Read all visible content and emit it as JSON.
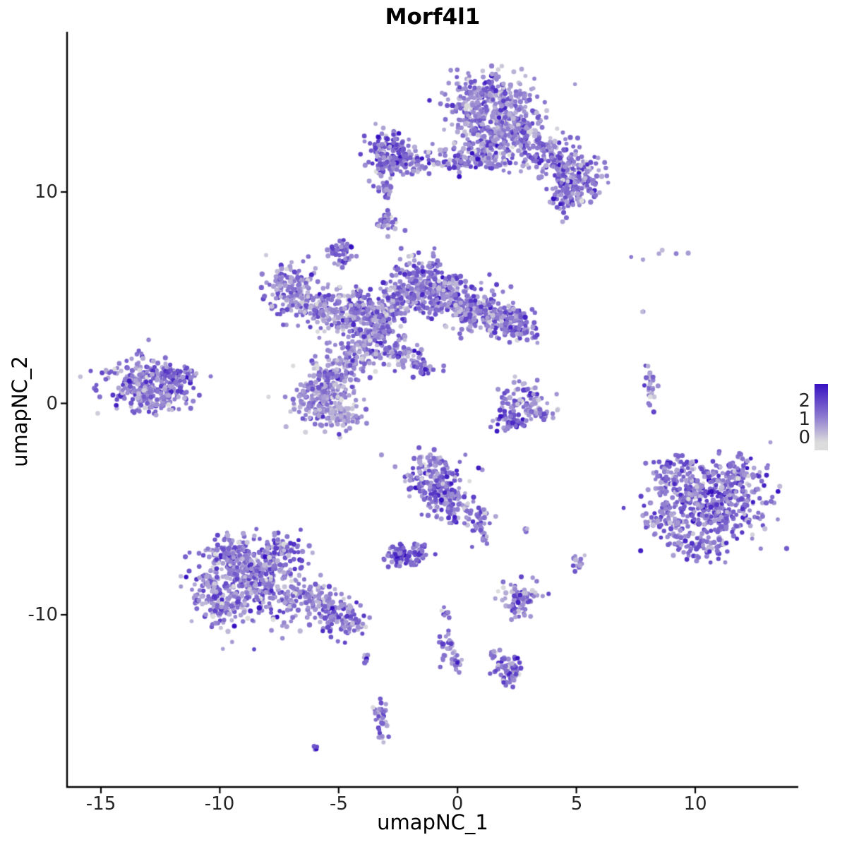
{
  "chart_data": {
    "type": "scatter",
    "title": "Morf4l1",
    "xlabel": "umapNC_1",
    "ylabel": "umapNC_2",
    "xlim": [
      -16.4,
      14.3
    ],
    "ylim": [
      -18.1,
      17.6
    ],
    "xticks": [
      -15,
      -10,
      -5,
      0,
      5,
      10
    ],
    "xtick_labels": [
      "-15",
      "-10",
      "-5",
      "0",
      "5",
      "10"
    ],
    "yticks": [
      -10,
      0,
      10
    ],
    "ytick_labels": [
      "-10",
      "0",
      "10"
    ],
    "grid": false,
    "legend": {
      "tick_labels": [
        "2",
        "1",
        "0"
      ],
      "values": [
        2,
        1,
        0
      ],
      "low_color": "#DCDCDC",
      "high_color": "#3711C1",
      "value_range": [
        0,
        2.6
      ],
      "position": "right"
    },
    "point_radius": 3.2,
    "seed": 42,
    "expr_sd": 0.55,
    "cluster_fields": [
      "x",
      "y",
      "sx",
      "sy",
      "n",
      "expr_mean"
    ],
    "clusters": [
      [
        1.3,
        14.3,
        0.85,
        0.75,
        270,
        1.15
      ],
      [
        2.3,
        13.2,
        0.7,
        0.65,
        170,
        1.2
      ],
      [
        0.9,
        12.9,
        0.5,
        0.6,
        90,
        1.1
      ],
      [
        3.3,
        12.2,
        0.55,
        0.5,
        90,
        1.2
      ],
      [
        4.2,
        11.3,
        0.5,
        0.5,
        90,
        1.3
      ],
      [
        5.0,
        10.7,
        0.5,
        0.55,
        130,
        1.35
      ],
      [
        4.6,
        9.7,
        0.35,
        0.4,
        50,
        1.3
      ],
      [
        1.5,
        11.9,
        0.45,
        0.4,
        60,
        1.15
      ],
      [
        0.9,
        11.5,
        0.9,
        0.22,
        70,
        1.2
      ],
      [
        -0.5,
        11.6,
        0.5,
        0.3,
        45,
        1.1
      ],
      [
        -2.95,
        11.8,
        0.45,
        0.5,
        140,
        1.45
      ],
      [
        -2.2,
        11.4,
        0.5,
        0.3,
        55,
        1.2
      ],
      [
        -3.0,
        10.1,
        0.15,
        0.35,
        22,
        1.3
      ],
      [
        -2.9,
        8.6,
        0.22,
        0.3,
        30,
        1.4
      ],
      [
        -4.9,
        7.1,
        0.28,
        0.3,
        48,
        1.5
      ],
      [
        -7.1,
        5.6,
        0.55,
        0.6,
        120,
        1.15
      ],
      [
        -6.3,
        4.7,
        0.5,
        0.5,
        80,
        1.1
      ],
      [
        -5.3,
        4.2,
        0.5,
        0.45,
        75,
        1.1
      ],
      [
        -4.4,
        4.5,
        0.5,
        0.5,
        95,
        1.2
      ],
      [
        -3.6,
        3.9,
        0.5,
        0.55,
        130,
        1.35
      ],
      [
        -2.6,
        4.8,
        0.5,
        0.5,
        95,
        1.2
      ],
      [
        -1.4,
        5.7,
        0.7,
        0.6,
        190,
        1.3
      ],
      [
        -0.3,
        4.9,
        0.6,
        0.55,
        150,
        1.3
      ],
      [
        0.8,
        4.4,
        0.6,
        0.5,
        120,
        1.2
      ],
      [
        1.9,
        4.0,
        0.55,
        0.4,
        110,
        1.3
      ],
      [
        2.6,
        3.5,
        0.4,
        0.3,
        60,
        1.3
      ],
      [
        -3.3,
        3.0,
        0.5,
        0.5,
        90,
        1.2
      ],
      [
        -4.5,
        2.3,
        0.6,
        0.5,
        100,
        1.1
      ],
      [
        -5.4,
        1.2,
        0.6,
        0.55,
        130,
        1.1
      ],
      [
        -5.9,
        0.2,
        0.6,
        0.55,
        140,
        1.05
      ],
      [
        -5.0,
        -0.6,
        0.5,
        0.4,
        85,
        1.0
      ],
      [
        -2.2,
        2.2,
        0.35,
        0.35,
        40,
        1.2
      ],
      [
        -1.5,
        1.6,
        0.3,
        0.25,
        30,
        1.25
      ],
      [
        -13.2,
        1.0,
        0.9,
        0.6,
        240,
        1.2
      ],
      [
        -11.9,
        1.3,
        0.4,
        0.3,
        60,
        1.35
      ],
      [
        -12.6,
        0.2,
        0.6,
        0.35,
        60,
        1.1
      ],
      [
        2.8,
        0.2,
        0.5,
        0.45,
        65,
        1.1
      ],
      [
        2.2,
        -0.8,
        0.3,
        0.25,
        45,
        1.5
      ],
      [
        3.4,
        -0.4,
        0.3,
        0.3,
        28,
        1.0
      ],
      [
        8.15,
        0.9,
        0.12,
        0.45,
        28,
        1.0
      ],
      [
        8.3,
        7.0,
        0.9,
        0.12,
        6,
        1.0
      ],
      [
        7.8,
        4.3,
        0.05,
        0.05,
        2,
        0.6
      ],
      [
        10.6,
        -4.8,
        1.25,
        1.05,
        430,
        1.4
      ],
      [
        9.3,
        -3.5,
        0.6,
        0.55,
        95,
        1.2
      ],
      [
        11.9,
        -3.3,
        0.5,
        0.45,
        70,
        1.3
      ],
      [
        8.6,
        -5.5,
        0.4,
        0.5,
        55,
        1.1
      ],
      [
        10.0,
        -6.8,
        0.6,
        0.3,
        50,
        1.2
      ],
      [
        -0.9,
        -3.7,
        0.6,
        0.6,
        180,
        1.3
      ],
      [
        -0.3,
        -4.9,
        0.4,
        0.4,
        60,
        1.25
      ],
      [
        0.9,
        -5.6,
        0.25,
        0.4,
        40,
        1.3
      ],
      [
        1.2,
        -6.4,
        0.1,
        0.12,
        6,
        1.2
      ],
      [
        2.8,
        -5.9,
        0.08,
        0.08,
        4,
        1.1
      ],
      [
        -2.3,
        -7.2,
        0.35,
        0.28,
        75,
        1.5
      ],
      [
        -1.6,
        -6.9,
        0.2,
        0.2,
        15,
        1.2
      ],
      [
        -8.6,
        -8.5,
        1.1,
        1.0,
        390,
        1.2
      ],
      [
        -9.4,
        -7.3,
        0.6,
        0.5,
        90,
        1.2
      ],
      [
        -7.3,
        -7.0,
        0.55,
        0.5,
        85,
        1.25
      ],
      [
        -6.3,
        -9.3,
        0.7,
        0.5,
        95,
        1.1
      ],
      [
        -5.2,
        -10.0,
        0.5,
        0.4,
        70,
        1.2
      ],
      [
        -4.4,
        -10.4,
        0.3,
        0.3,
        40,
        1.3
      ],
      [
        -9.9,
        -9.6,
        0.5,
        0.45,
        70,
        1.1
      ],
      [
        -10.5,
        -8.6,
        0.3,
        0.4,
        40,
        1.15
      ],
      [
        2.6,
        -9.2,
        0.42,
        0.4,
        75,
        1.1
      ],
      [
        5.1,
        -7.5,
        0.15,
        0.22,
        12,
        1.3
      ],
      [
        -0.6,
        -9.9,
        0.15,
        0.15,
        8,
        1.2
      ],
      [
        -0.4,
        -11.4,
        0.2,
        0.38,
        26,
        1.3
      ],
      [
        -0.1,
        -12.4,
        0.15,
        0.28,
        15,
        1.3
      ],
      [
        2.1,
        -12.6,
        0.35,
        0.35,
        65,
        1.4
      ],
      [
        1.5,
        -12.0,
        0.15,
        0.15,
        8,
        1.1
      ],
      [
        -3.9,
        -12.1,
        0.1,
        0.15,
        6,
        1.3
      ],
      [
        -3.3,
        -14.7,
        0.22,
        0.35,
        26,
        1.3
      ],
      [
        -3.2,
        -15.6,
        0.15,
        0.25,
        12,
        1.2
      ],
      [
        -6.0,
        -16.3,
        0.1,
        0.1,
        4,
        1.3
      ]
    ]
  }
}
